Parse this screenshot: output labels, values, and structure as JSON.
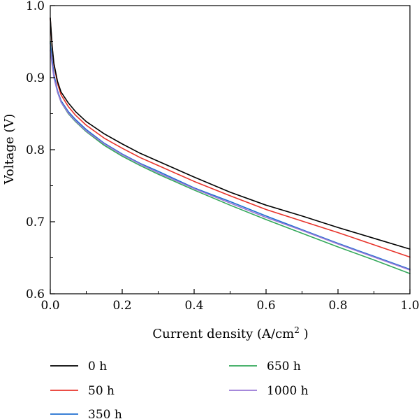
{
  "chart_data": {
    "type": "line",
    "xlabel": "Current density (A/cm",
    "xlabel_sup": "2",
    "xlabel_close": " )",
    "ylabel": "Voltage (V)",
    "xlim": [
      0.0,
      1.0
    ],
    "ylim": [
      0.6,
      1.0
    ],
    "x_ticks": [
      0.0,
      0.2,
      0.4,
      0.6,
      0.8,
      1.0
    ],
    "x_tick_labels": [
      "0.0",
      "0.2",
      "0.4",
      "0.6",
      "0.8",
      "1.0"
    ],
    "y_ticks": [
      0.6,
      0.7,
      0.8,
      0.9,
      1.0
    ],
    "y_tick_labels": [
      "0.6",
      "0.7",
      "0.8",
      "0.9",
      "1.0"
    ],
    "grid": false,
    "legend_position": "bottom",
    "series": [
      {
        "name": "0 h",
        "color": "#000000",
        "x": [
          0.0,
          0.005,
          0.01,
          0.02,
          0.03,
          0.05,
          0.07,
          0.1,
          0.15,
          0.2,
          0.25,
          0.3,
          0.4,
          0.5,
          0.6,
          0.7,
          0.8,
          0.9,
          1.0
        ],
        "y": [
          0.983,
          0.945,
          0.92,
          0.895,
          0.88,
          0.865,
          0.853,
          0.839,
          0.822,
          0.808,
          0.795,
          0.784,
          0.762,
          0.741,
          0.723,
          0.708,
          0.692,
          0.677,
          0.662
        ]
      },
      {
        "name": "50 h",
        "color": "#e8342b",
        "x": [
          0.0,
          0.005,
          0.01,
          0.02,
          0.03,
          0.05,
          0.07,
          0.1,
          0.15,
          0.2,
          0.25,
          0.3,
          0.4,
          0.5,
          0.6,
          0.7,
          0.8,
          0.9,
          1.0
        ],
        "y": [
          0.982,
          0.943,
          0.918,
          0.892,
          0.876,
          0.86,
          0.848,
          0.834,
          0.816,
          0.802,
          0.789,
          0.778,
          0.756,
          0.736,
          0.717,
          0.701,
          0.685,
          0.668,
          0.651
        ]
      },
      {
        "name": "350 h",
        "color": "#1f6fd1",
        "x": [
          0.0,
          0.005,
          0.01,
          0.02,
          0.03,
          0.05,
          0.07,
          0.1,
          0.15,
          0.2,
          0.25,
          0.3,
          0.4,
          0.5,
          0.6,
          0.7,
          0.8,
          0.9,
          1.0
        ],
        "y": [
          0.948,
          0.925,
          0.905,
          0.882,
          0.868,
          0.853,
          0.842,
          0.828,
          0.809,
          0.794,
          0.781,
          0.77,
          0.747,
          0.728,
          0.708,
          0.689,
          0.67,
          0.652,
          0.634
        ]
      },
      {
        "name": "650 h",
        "color": "#33a85a",
        "x": [
          0.0,
          0.005,
          0.01,
          0.02,
          0.03,
          0.05,
          0.07,
          0.1,
          0.15,
          0.2,
          0.25,
          0.3,
          0.4,
          0.5,
          0.6,
          0.7,
          0.8,
          0.9,
          1.0
        ],
        "y": [
          0.95,
          0.925,
          0.904,
          0.88,
          0.866,
          0.85,
          0.839,
          0.825,
          0.806,
          0.791,
          0.778,
          0.766,
          0.744,
          0.723,
          0.703,
          0.684,
          0.665,
          0.647,
          0.628
        ]
      },
      {
        "name": "1000 h",
        "color": "#9a78d6",
        "x": [
          0.0,
          0.005,
          0.01,
          0.02,
          0.03,
          0.05,
          0.07,
          0.1,
          0.15,
          0.2,
          0.25,
          0.3,
          0.4,
          0.5,
          0.6,
          0.7,
          0.8,
          0.9,
          1.0
        ],
        "y": [
          0.938,
          0.918,
          0.9,
          0.88,
          0.866,
          0.851,
          0.84,
          0.826,
          0.808,
          0.793,
          0.78,
          0.768,
          0.746,
          0.726,
          0.706,
          0.688,
          0.669,
          0.651,
          0.633
        ]
      }
    ]
  }
}
